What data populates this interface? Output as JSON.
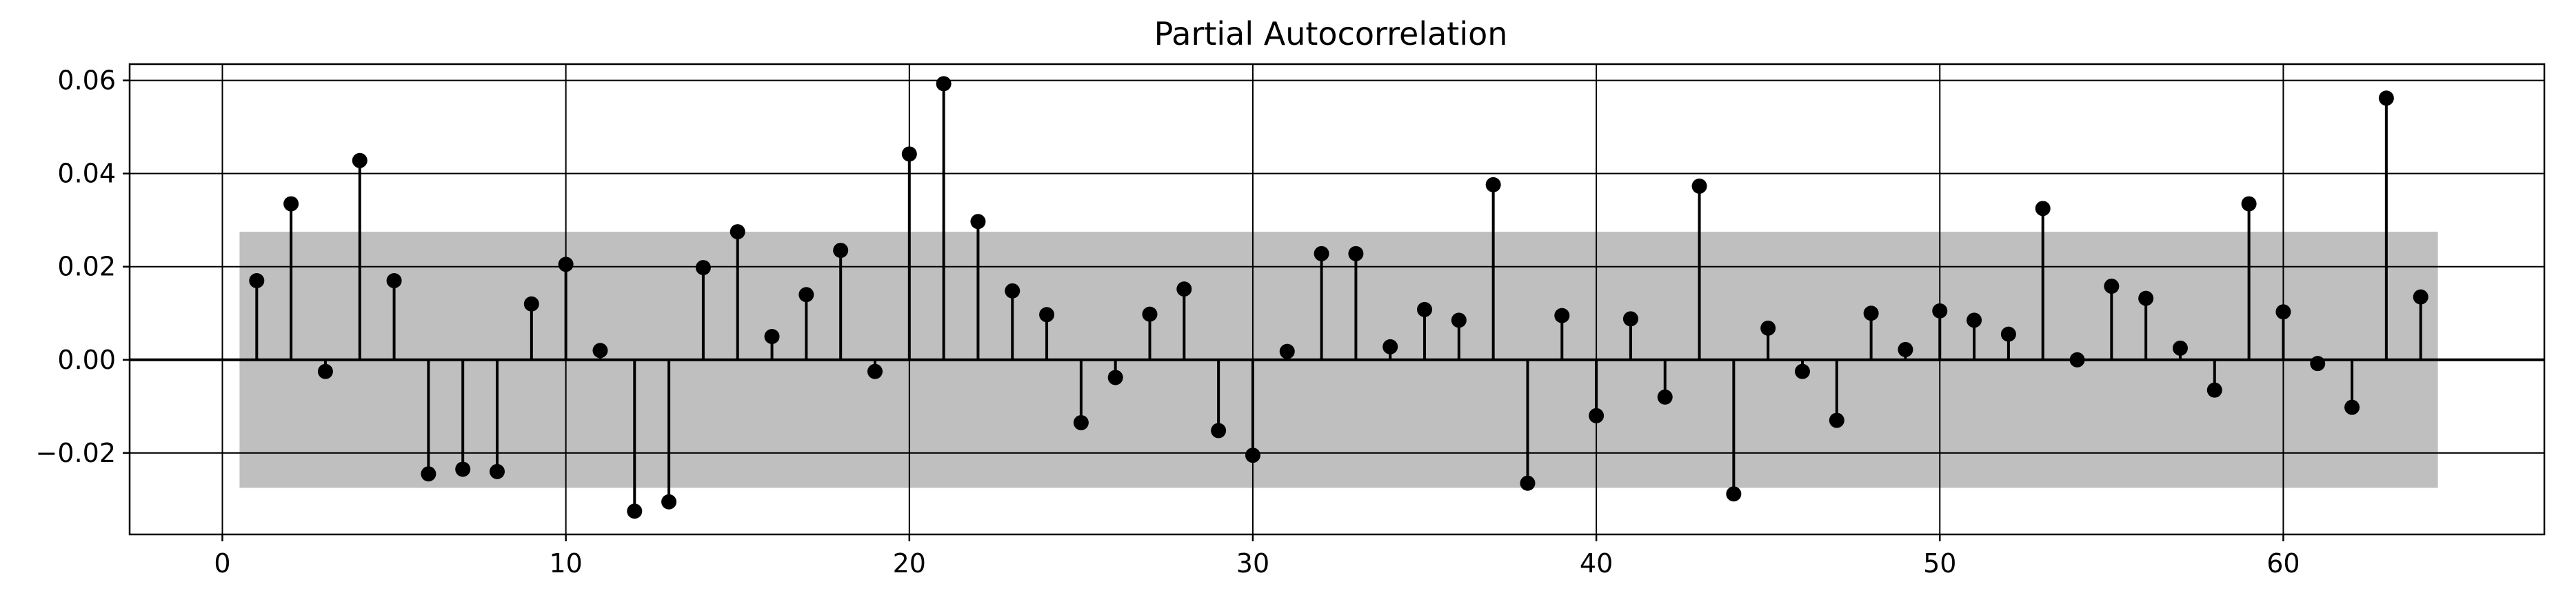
{
  "chart_data": {
    "type": "stem",
    "title": "Partial Autocorrelation",
    "xlabel": "",
    "ylabel": "",
    "xlim": [
      -2.7,
      67.6
    ],
    "ylim": [
      -0.0375,
      0.0635
    ],
    "x_ticks": [
      0,
      10,
      20,
      30,
      40,
      50,
      60
    ],
    "x_tick_labels": [
      "0",
      "10",
      "20",
      "30",
      "40",
      "50",
      "60"
    ],
    "y_ticks": [
      -0.02,
      0.0,
      0.02,
      0.04,
      0.06
    ],
    "y_tick_labels": [
      "−0.02",
      "0.00",
      "0.02",
      "0.04",
      "0.06"
    ],
    "grid": true,
    "confidence_band": {
      "x_range": [
        0.5,
        64.5
      ],
      "lower": -0.0275,
      "upper": 0.0275,
      "color": "#bfbfbf"
    },
    "marker_color": "#000000",
    "lags": [
      1,
      2,
      3,
      4,
      5,
      6,
      7,
      8,
      9,
      10,
      11,
      12,
      13,
      14,
      15,
      16,
      17,
      18,
      19,
      20,
      21,
      22,
      23,
      24,
      25,
      26,
      27,
      28,
      29,
      30,
      31,
      32,
      33,
      34,
      35,
      36,
      37,
      38,
      39,
      40,
      41,
      42,
      43,
      44,
      45,
      46,
      47,
      48,
      49,
      50,
      51,
      52,
      53,
      54,
      55,
      56,
      57,
      58,
      59,
      60,
      61,
      62,
      63,
      64
    ],
    "values": [
      0.017,
      0.0335,
      -0.0025,
      0.0428,
      0.017,
      -0.0245,
      -0.0235,
      -0.024,
      0.012,
      0.0205,
      0.002,
      -0.0325,
      -0.0305,
      0.0198,
      0.0275,
      0.005,
      0.014,
      0.0235,
      -0.0025,
      0.0442,
      0.0593,
      0.0297,
      0.0148,
      0.0097,
      -0.0135,
      -0.0038,
      0.0098,
      0.0152,
      -0.0152,
      -0.0205,
      0.0018,
      0.0228,
      0.0228,
      0.0028,
      0.0108,
      0.0085,
      0.0376,
      -0.0265,
      0.0095,
      -0.012,
      0.0088,
      -0.008,
      0.0373,
      -0.0288,
      0.0068,
      -0.0025,
      -0.013,
      0.01,
      0.0022,
      0.0105,
      0.0085,
      0.0055,
      0.0325,
      0.0,
      0.0158,
      0.0132,
      0.0025,
      -0.0065,
      0.0335,
      0.0103,
      -0.0008,
      -0.0102,
      0.0562,
      0.0135
    ]
  }
}
